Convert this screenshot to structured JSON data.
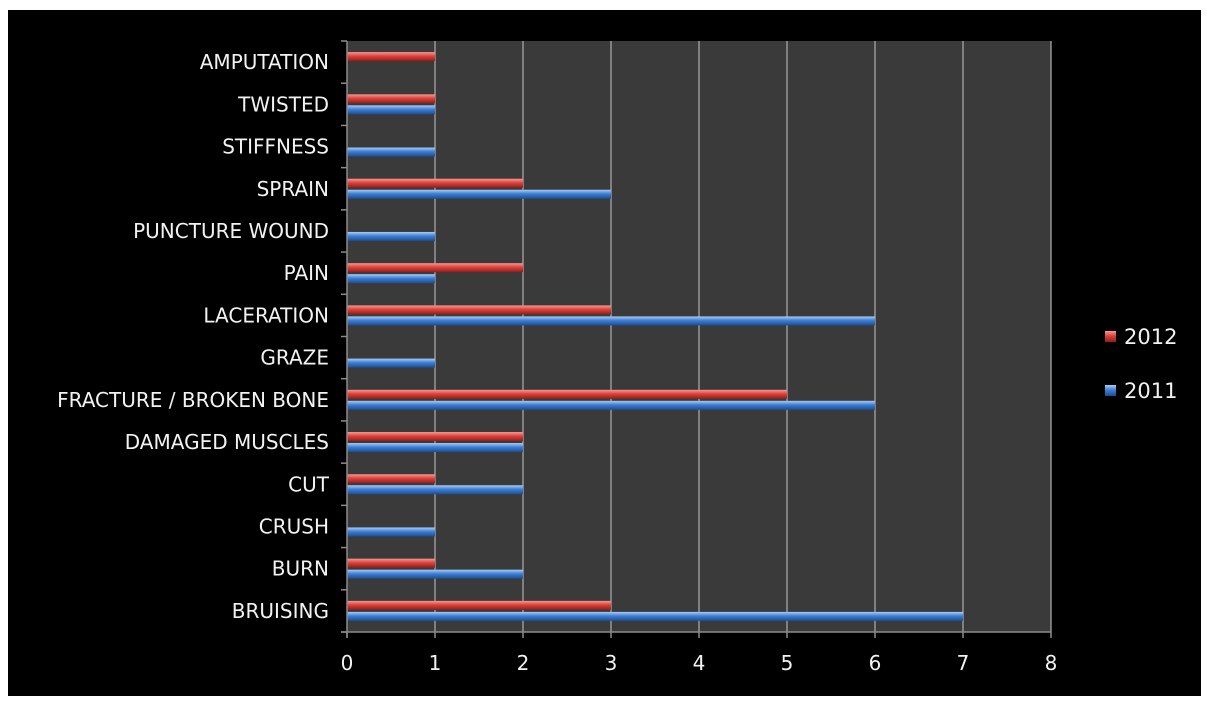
{
  "chart_data": {
    "type": "bar",
    "orientation": "horizontal",
    "categories": [
      "AMPUTATION",
      "TWISTED",
      "STIFFNESS",
      "SPRAIN",
      "PUNCTURE WOUND",
      "PAIN",
      "LACERATION",
      "GRAZE",
      "FRACTURE / BROKEN BONE",
      "DAMAGED MUSCLES",
      "CUT",
      "CRUSH",
      "BURN",
      "BRUISING"
    ],
    "series": [
      {
        "name": "2012",
        "color": "#e0413b",
        "values": [
          1,
          1,
          0,
          2,
          0,
          2,
          3,
          0,
          5,
          2,
          1,
          0,
          1,
          3
        ]
      },
      {
        "name": "2011",
        "color": "#3d7fd6",
        "values": [
          0,
          1,
          1,
          3,
          1,
          1,
          6,
          1,
          6,
          2,
          2,
          1,
          2,
          7
        ]
      }
    ],
    "xlim": [
      0,
      8
    ],
    "xticks": [
      "0",
      "1",
      "2",
      "3",
      "4",
      "5",
      "6",
      "7",
      "8"
    ],
    "grid": true,
    "legend_position": "right",
    "title": "",
    "xlabel": "",
    "ylabel": ""
  }
}
